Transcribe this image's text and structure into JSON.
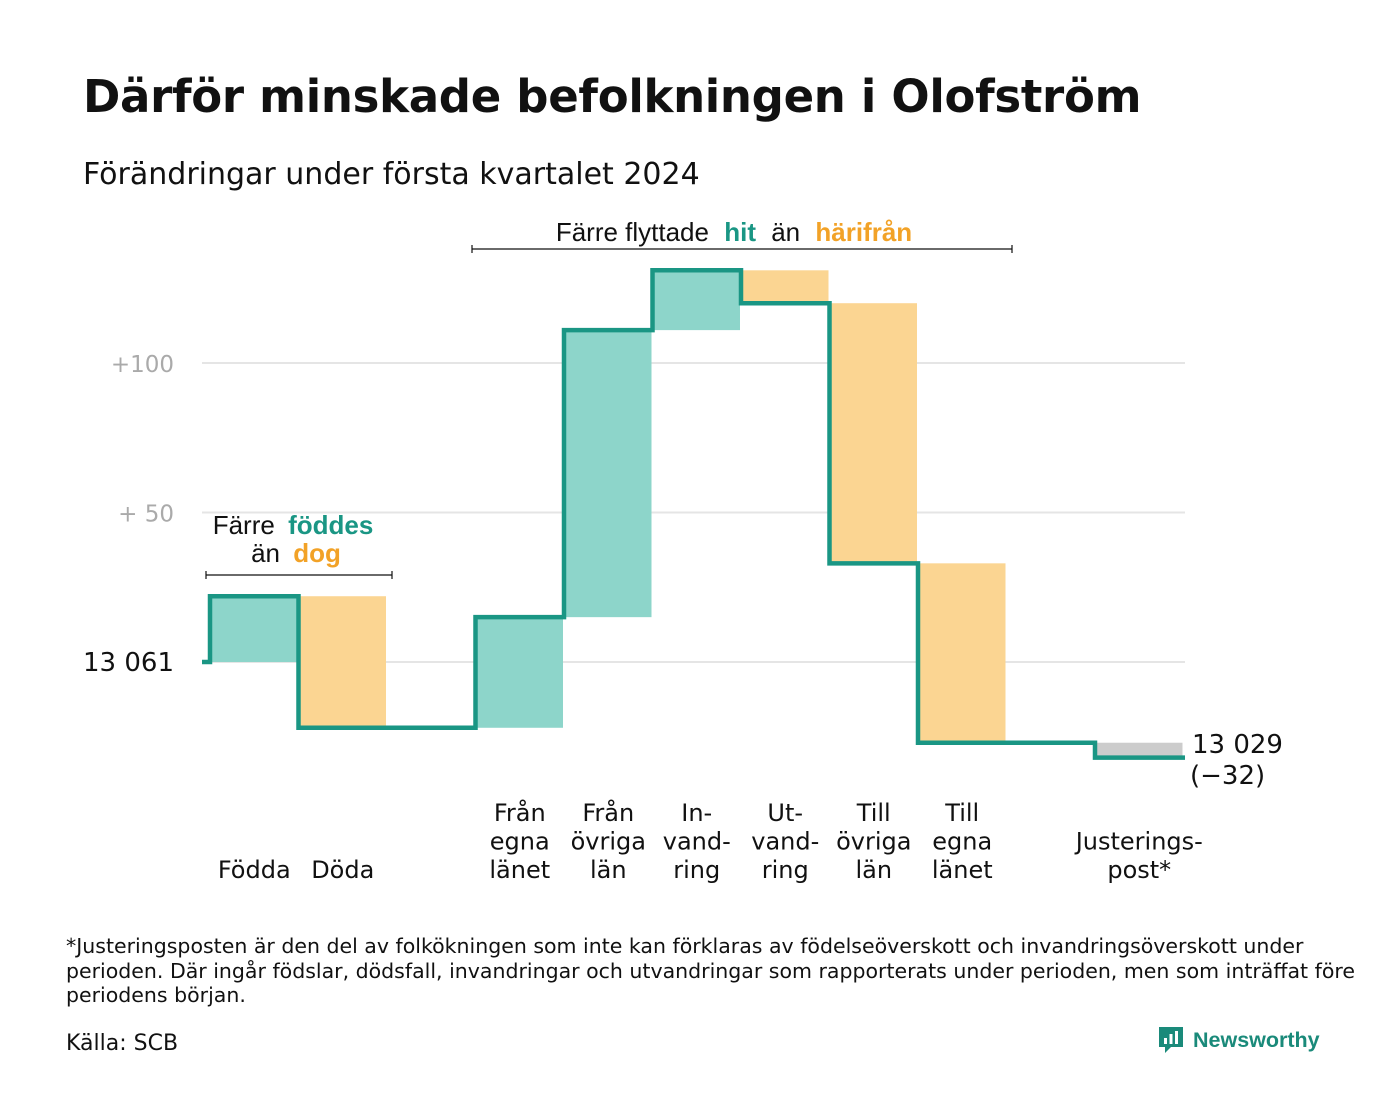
{
  "title": "Därför minskade befolkningen i Olofström",
  "subtitle": "Förändringar under första kvartalet 2024",
  "colors": {
    "inflow": "#8dd5ca",
    "outflow": "#fbd592",
    "adjust": "#cccccc",
    "line": "#1a9684",
    "teal_text": "#1a9684",
    "orange_text": "#f2a227",
    "grid": "#e5e5e5"
  },
  "chart_data": {
    "type": "waterfall",
    "start_value": 13061,
    "y_ticks": [
      {
        "offset": 0,
        "label": "13 061"
      },
      {
        "offset": 50,
        "label": "+ 50"
      },
      {
        "offset": 100,
        "label": "+100"
      }
    ],
    "steps": [
      {
        "label_lines": [
          "Födda"
        ],
        "value": 22,
        "kind": "inflow"
      },
      {
        "label_lines": [
          "Döda"
        ],
        "value": -44,
        "kind": "outflow"
      },
      {
        "label_lines": [],
        "value": 0,
        "kind": "gap"
      },
      {
        "label_lines": [
          "Från",
          "egna",
          "länet"
        ],
        "value": 37,
        "kind": "inflow"
      },
      {
        "label_lines": [
          "Från",
          "övriga",
          "län"
        ],
        "value": 96,
        "kind": "inflow"
      },
      {
        "label_lines": [
          "In-",
          "vand-",
          "ring"
        ],
        "value": 20,
        "kind": "inflow"
      },
      {
        "label_lines": [
          "Ut-",
          "vand-",
          "ring"
        ],
        "value": -11,
        "kind": "outflow"
      },
      {
        "label_lines": [
          "Till",
          "övriga",
          "län"
        ],
        "value": -87,
        "kind": "outflow"
      },
      {
        "label_lines": [
          "Till",
          "egna",
          "länet"
        ],
        "value": -60,
        "kind": "outflow"
      },
      {
        "label_lines": [],
        "value": 0,
        "kind": "gap"
      },
      {
        "label_lines": [
          "Justerings-",
          "post*"
        ],
        "value": -5,
        "kind": "adjust"
      }
    ],
    "end_label": "13 029",
    "end_change": "(−32)",
    "annotations": {
      "births": {
        "line1_pre": "Färre",
        "line1_em": "föddes",
        "line2_pre": "än",
        "line2_em": "dog"
      },
      "moves": {
        "pre": "Färre flyttade",
        "em1": "hit",
        "mid": "än",
        "em2": "härifrån"
      }
    }
  },
  "footnote": "*Justeringsposten är den del av folkökningen som inte kan förklaras av födelseöverskott och invandringsöverskott under perioden. Där ingår födslar, dödsfall, invandringar och utvandringar som rapporterats under perioden, men som inträffat före periodens början.",
  "source": "Källa: SCB",
  "brand": {
    "name": "Newsworthy",
    "icon": "newsworthy-logo-icon"
  }
}
